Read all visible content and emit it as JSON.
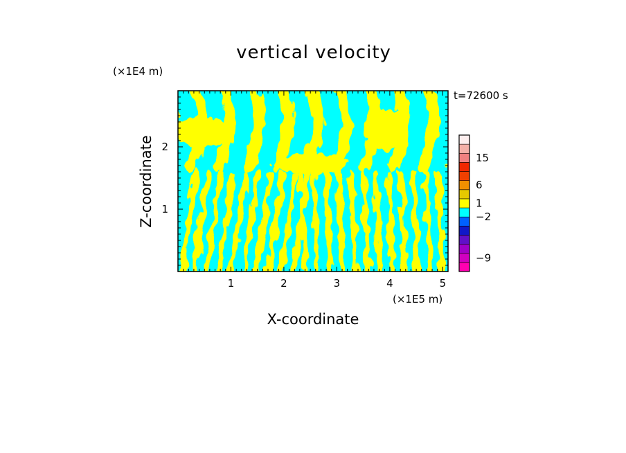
{
  "chart_data": {
    "type": "heatmap",
    "title": "vertical velocity",
    "xlabel": "X-coordinate",
    "ylabel": "Z-coordinate",
    "x_unit": "(×1E5 m)",
    "y_unit": "(×1E4 m)",
    "time_label": "t=72600 s",
    "xlim": [
      0,
      5.1
    ],
    "ylim": [
      0,
      2.9
    ],
    "x_ticks": [
      {
        "value": 1,
        "label": "1"
      },
      {
        "value": 2,
        "label": "2"
      },
      {
        "value": 3,
        "label": "3"
      },
      {
        "value": 4,
        "label": "4"
      },
      {
        "value": 5,
        "label": "5"
      }
    ],
    "y_ticks": [
      {
        "value": 1,
        "label": "1"
      },
      {
        "value": 2,
        "label": "2"
      }
    ],
    "field_colors": {
      "positive": "#ffff00",
      "negative": "#00ffff"
    },
    "colorbar": {
      "levels": [
        "#ff00b0",
        "#d000c0",
        "#a000c8",
        "#6010c8",
        "#1018c8",
        "#0060ff",
        "#00ffff",
        "#ffff00",
        "#e6c800",
        "#f09000",
        "#f04000",
        "#f02800",
        "#f08080",
        "#f4b0a8",
        "#fdeeee"
      ],
      "tick_labels": [
        {
          "label": "15",
          "pos": 12.5
        },
        {
          "label": "6",
          "pos": 9.5
        },
        {
          "label": "1",
          "pos": 7.5
        },
        {
          "label": "−2",
          "pos": 6.0
        },
        {
          "label": "−9",
          "pos": 1.5
        }
      ]
    }
  }
}
